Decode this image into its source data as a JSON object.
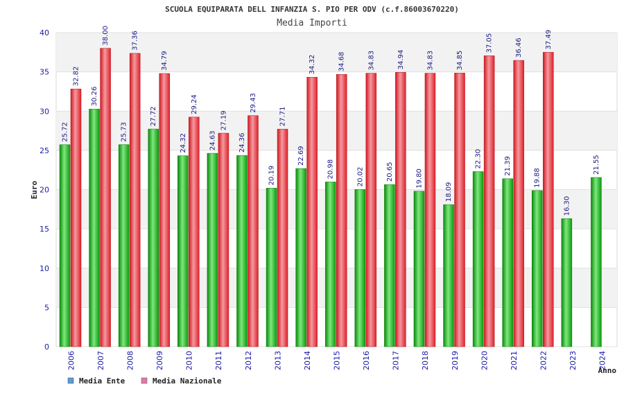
{
  "chart_data": {
    "type": "bar",
    "title": "SCUOLA EQUIPARATA DELL INFANZIA S. PIO PER ODV (c.f.86003670220)",
    "subtitle": "Media Importi",
    "ylabel": "Euro",
    "xlabel": "Anno",
    "ylim": [
      0,
      40
    ],
    "yticks": [
      0,
      5,
      10,
      15,
      20,
      25,
      30,
      35,
      40
    ],
    "grid": true,
    "legend_position": "bottom-left",
    "categories": [
      "2006",
      "2007",
      "2008",
      "2009",
      "2010",
      "2011",
      "2012",
      "2013",
      "2014",
      "2015",
      "2016",
      "2017",
      "2018",
      "2019",
      "2020",
      "2021",
      "2022",
      "2023",
      "2024"
    ],
    "series": [
      {
        "name": "Media Ente",
        "color": "#18b818",
        "legend_color": "#5b9bd5",
        "values": [
          25.72,
          30.26,
          25.73,
          27.72,
          24.32,
          24.63,
          24.36,
          20.19,
          22.69,
          20.98,
          20.02,
          20.65,
          19.8,
          18.09,
          22.3,
          21.39,
          19.88,
          16.3,
          21.55
        ],
        "labels": [
          "25.72",
          "30.26",
          "25.73",
          "27.72",
          "24.32",
          "24.63",
          "24.36",
          "20.19",
          "22.69",
          "20.98",
          "20.02",
          "20.65",
          "19.80",
          "18.09",
          "22.30",
          "21.39",
          "19.88",
          "16.30",
          "21.55"
        ]
      },
      {
        "name": "Media Nazionale",
        "color": "#e8222a",
        "legend_color": "#e07aa8",
        "values": [
          32.82,
          38.0,
          37.36,
          34.79,
          29.24,
          27.19,
          29.43,
          27.71,
          34.32,
          34.68,
          34.83,
          34.94,
          34.83,
          34.85,
          37.05,
          36.46,
          37.49,
          null,
          null
        ],
        "labels": [
          "32.82",
          "38.00",
          "37.36",
          "34.79",
          "29.24",
          "27.19",
          "29.43",
          "27.71",
          "34.32",
          "34.68",
          "34.83",
          "34.94",
          "34.83",
          "34.85",
          "37.05",
          "36.46",
          "37.49",
          "",
          ""
        ]
      }
    ]
  }
}
